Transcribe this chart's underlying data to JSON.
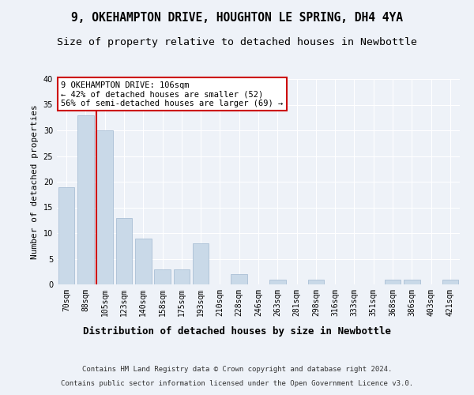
{
  "title": "9, OKEHAMPTON DRIVE, HOUGHTON LE SPRING, DH4 4YA",
  "subtitle": "Size of property relative to detached houses in Newbottle",
  "xlabel": "Distribution of detached houses by size in Newbottle",
  "ylabel": "Number of detached properties",
  "categories": [
    "70sqm",
    "88sqm",
    "105sqm",
    "123sqm",
    "140sqm",
    "158sqm",
    "175sqm",
    "193sqm",
    "210sqm",
    "228sqm",
    "246sqm",
    "263sqm",
    "281sqm",
    "298sqm",
    "316sqm",
    "333sqm",
    "351sqm",
    "368sqm",
    "386sqm",
    "403sqm",
    "421sqm"
  ],
  "values": [
    19,
    33,
    30,
    13,
    9,
    3,
    3,
    8,
    0,
    2,
    0,
    1,
    0,
    1,
    0,
    0,
    0,
    1,
    1,
    0,
    1
  ],
  "bar_color": "#c9d9e8",
  "bar_edge_color": "#a0b8d0",
  "subject_index": 2,
  "subject_label": "9 OKEHAMPTON DRIVE: 106sqm",
  "annotation_line1": "← 42% of detached houses are smaller (52)",
  "annotation_line2": "56% of semi-detached houses are larger (69) →",
  "vline_color": "#cc0000",
  "annotation_box_edge_color": "#cc0000",
  "ylim": [
    0,
    40
  ],
  "yticks": [
    0,
    5,
    10,
    15,
    20,
    25,
    30,
    35,
    40
  ],
  "footer_line1": "Contains HM Land Registry data © Crown copyright and database right 2024.",
  "footer_line2": "Contains public sector information licensed under the Open Government Licence v3.0.",
  "bg_color": "#eef2f8",
  "plot_bg_color": "#eef2f8",
  "grid_color": "#ffffff",
  "title_fontsize": 10.5,
  "subtitle_fontsize": 9.5,
  "xlabel_fontsize": 9,
  "ylabel_fontsize": 8,
  "tick_fontsize": 7,
  "footer_fontsize": 6.5,
  "annotation_fontsize": 7.5
}
